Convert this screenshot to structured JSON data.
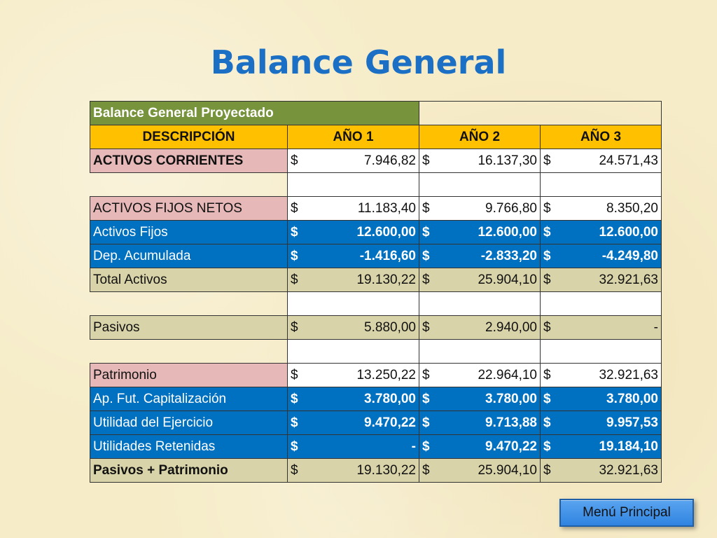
{
  "slide": {
    "title": "Balance General",
    "menu_button": "Menú Principal"
  },
  "table": {
    "caption": "Balance General Proyectado",
    "headers": [
      "DESCRIPCIÓN",
      "AÑO 1",
      "AÑO 2",
      "AÑO 3"
    ],
    "rows": [
      {
        "label": "ACTIVOS CORRIENTES",
        "values": [
          [
            "$",
            "7.946,82"
          ],
          [
            "$",
            "16.137,30"
          ],
          [
            "$",
            "24.571,43"
          ]
        ]
      },
      {
        "label": "",
        "values": [
          [
            "",
            ""
          ],
          [
            "",
            ""
          ],
          [
            "",
            ""
          ]
        ]
      },
      {
        "label": "ACTIVOS FIJOS NETOS",
        "values": [
          [
            "$",
            "11.183,40"
          ],
          [
            "$",
            "9.766,80"
          ],
          [
            "$",
            "8.350,20"
          ]
        ]
      },
      {
        "label": "Activos Fijos",
        "values": [
          [
            "$",
            "12.600,00"
          ],
          [
            "$",
            "12.600,00"
          ],
          [
            "$",
            "12.600,00"
          ]
        ]
      },
      {
        "label": "Dep. Acumulada",
        "values": [
          [
            "$",
            "-1.416,60"
          ],
          [
            "$",
            "-2.833,20"
          ],
          [
            "$",
            "-4.249,80"
          ]
        ]
      },
      {
        "label": "Total Activos",
        "values": [
          [
            "$",
            "19.130,22"
          ],
          [
            "$",
            "25.904,10"
          ],
          [
            "$",
            "32.921,63"
          ]
        ]
      },
      {
        "label": "",
        "values": [
          [
            "",
            ""
          ],
          [
            "",
            ""
          ],
          [
            "",
            ""
          ]
        ]
      },
      {
        "label": "Pasivos",
        "values": [
          [
            "$",
            "5.880,00"
          ],
          [
            "$",
            "2.940,00"
          ],
          [
            "$",
            "-"
          ]
        ]
      },
      {
        "label": "",
        "values": [
          [
            "",
            ""
          ],
          [
            "",
            ""
          ],
          [
            "",
            ""
          ]
        ]
      },
      {
        "label": "Patrimonio",
        "values": [
          [
            "$",
            "13.250,22"
          ],
          [
            "$",
            "22.964,10"
          ],
          [
            "$",
            "32.921,63"
          ]
        ]
      },
      {
        "label": "Ap. Fut. Capitalización",
        "values": [
          [
            "$",
            "3.780,00"
          ],
          [
            "$",
            "3.780,00"
          ],
          [
            "$",
            "3.780,00"
          ]
        ]
      },
      {
        "label": "Utilidad del Ejercicio",
        "values": [
          [
            "$",
            "9.470,22"
          ],
          [
            "$",
            "9.713,88"
          ],
          [
            "$",
            "9.957,53"
          ]
        ]
      },
      {
        "label": "Utilidades Retenidas",
        "values": [
          [
            "$",
            "-"
          ],
          [
            "$",
            "9.470,22"
          ],
          [
            "$",
            "19.184,10"
          ]
        ]
      },
      {
        "label": "Pasivos + Patrimonio",
        "values": [
          [
            "$",
            "19.130,22"
          ],
          [
            "$",
            "25.904,10"
          ],
          [
            "$",
            "32.921,63"
          ]
        ]
      }
    ]
  },
  "colors": {
    "title": "#1b6fc4",
    "caption_bg": "#77933c",
    "header_bg": "#ffc000",
    "pink": "#e6b9b8",
    "blue": "#0070c0",
    "olive": "#d8d3a8"
  }
}
